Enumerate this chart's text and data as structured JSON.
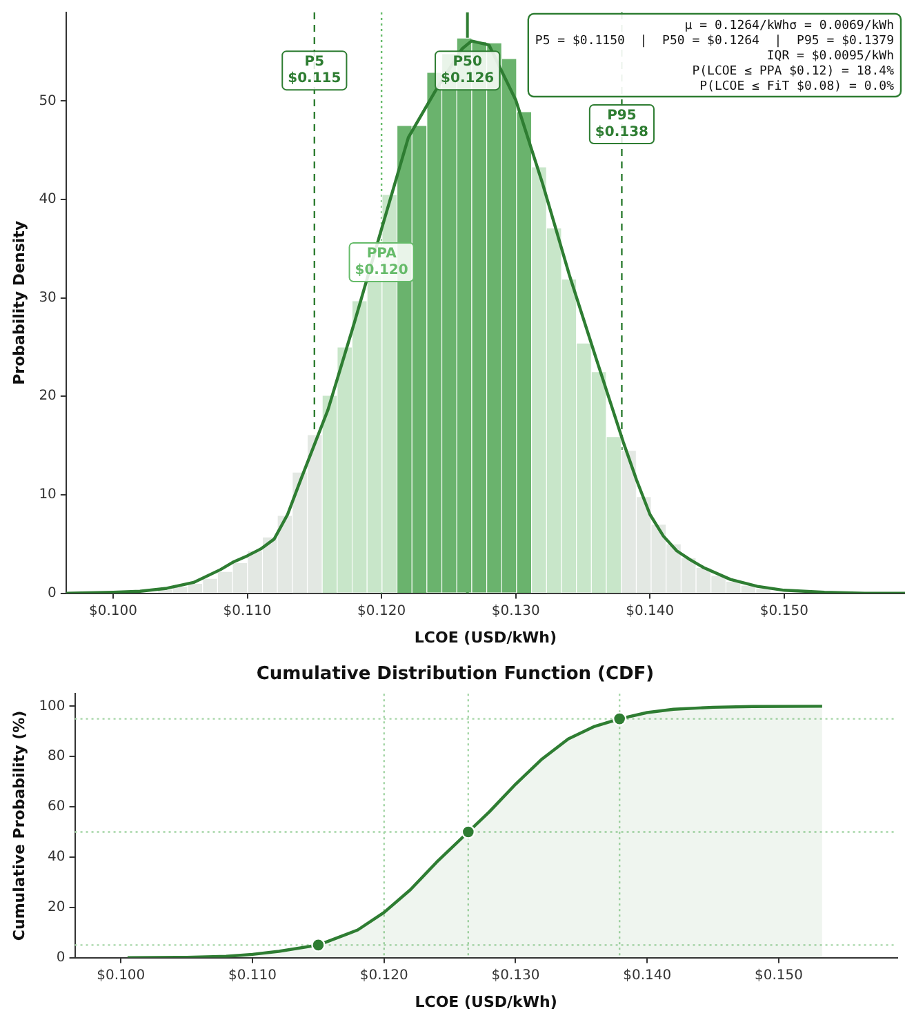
{
  "chart_data": [
    {
      "type": "histogram",
      "xlabel": "LCOE (USD/kWh)",
      "ylabel": "Probability Density",
      "bins": [
        0.1011,
        0.10221,
        0.10333,
        0.10444,
        0.10556,
        0.10667,
        0.10778,
        0.1089,
        0.11001,
        0.11113,
        0.11224,
        0.11335,
        0.11447,
        0.11558,
        0.1167,
        0.11781,
        0.11892,
        0.12004,
        0.12115,
        0.12227,
        0.12338,
        0.12449,
        0.12561,
        0.12672,
        0.12784,
        0.12895,
        0.13006,
        0.13118,
        0.13229,
        0.13341,
        0.13452,
        0.13563,
        0.13675,
        0.13786,
        0.13898,
        0.14009,
        0.1412,
        0.14232,
        0.14343,
        0.14455,
        0.14566,
        0.14677,
        0.14789,
        0.149,
        0.15012,
        0.15123,
        0.15234,
        0.15346
      ],
      "values": [
        null,
        null,
        0.4,
        0.7,
        1.0,
        1.5,
        2.2,
        3.1,
        4.3,
        5.7,
        7.9,
        12.3,
        16.1,
        20.1,
        25.0,
        29.7,
        32.3,
        40.5,
        47.5,
        47.5,
        52.9,
        54.8,
        56.4,
        56.0,
        55.9,
        54.3,
        48.9,
        43.3,
        37.1,
        31.9,
        25.4,
        22.5,
        15.9,
        14.5,
        9.8,
        7.0,
        5.0,
        3.6,
        2.6,
        1.8,
        1.2,
        0.8,
        0.5,
        null,
        null,
        null,
        null
      ],
      "colors": [
        "#e3e8e3",
        "#e3e8e3",
        "#e3e8e3",
        "#e3e8e3",
        "#e3e8e3",
        "#e3e8e3",
        "#e3e8e3",
        "#e3e8e3",
        "#e3e8e3",
        "#e3e8e3",
        "#e3e8e3",
        "#e3e8e3",
        "#e3e8e3",
        "#c8e6c9",
        "#c8e6c9",
        "#c8e6c9",
        "#c8e6c9",
        "#c8e6c9",
        "#6ab36d",
        "#6ab36d",
        "#6ab36d",
        "#6ab36d",
        "#6ab36d",
        "#6ab36d",
        "#6ab36d",
        "#6ab36d",
        "#6ab36d",
        "#c8e6c9",
        "#c8e6c9",
        "#c8e6c9",
        "#c8e6c9",
        "#c8e6c9",
        "#c8e6c9",
        "#e3e8e3",
        "#e3e8e3",
        "#e3e8e3",
        "#e3e8e3",
        "#e3e8e3",
        "#e3e8e3",
        "#e3e8e3",
        "#e3e8e3",
        "#e3e8e3",
        "#e3e8e3",
        "#e3e8e3",
        "#e3e8e3",
        "#e3e8e3",
        "#e3e8e3"
      ],
      "series": [
        {
          "type": "line",
          "color": "#2e7d32",
          "x": [
            0.0965,
            0.1,
            0.102,
            0.104,
            0.106,
            0.108,
            0.109,
            0.11,
            0.111,
            0.112,
            0.113,
            0.114,
            0.116,
            0.118,
            0.12,
            0.122,
            0.124,
            0.126,
            0.1267,
            0.128,
            0.13,
            0.132,
            0.134,
            0.136,
            0.138,
            0.139,
            0.14,
            0.141,
            0.142,
            0.143,
            0.144,
            0.146,
            0.148,
            0.15,
            0.153,
            0.156,
            0.159
          ],
          "values": [
            0,
            0.1,
            0.2,
            0.5,
            1.1,
            2.4,
            3.2,
            3.8,
            4.5,
            5.5,
            8.0,
            11.6,
            18.6,
            27.6,
            37.0,
            46.3,
            51.0,
            55.3,
            56.1,
            55.7,
            50.1,
            41.6,
            32.3,
            23.8,
            15.4,
            11.5,
            8.0,
            5.8,
            4.3,
            3.4,
            2.6,
            1.4,
            0.7,
            0.3,
            0.1,
            0,
            0
          ]
        }
      ],
      "xlim": [
        0.0965,
        0.159
      ],
      "ylim": [
        0,
        59
      ],
      "xticks": [
        {
          "value": 0.1,
          "label": "$0.100"
        },
        {
          "value": 0.11,
          "label": "$0.110"
        },
        {
          "value": 0.12,
          "label": "$0.120"
        },
        {
          "value": 0.13,
          "label": "$0.130"
        },
        {
          "value": 0.14,
          "label": "$0.140"
        },
        {
          "value": 0.15,
          "label": "$0.150"
        }
      ],
      "yticks": [
        0,
        10,
        20,
        30,
        40,
        50
      ],
      "ref_lines": [
        {
          "axis": "x",
          "value": 0.115,
          "label": "P5\n$0.115",
          "color": "#2e7d32",
          "line_style": "dashed"
        },
        {
          "axis": "x",
          "value": 0.12,
          "label": "PPA\n$0.120",
          "color": "#66bb6a",
          "line_style": "dotted"
        },
        {
          "axis": "x",
          "value": 0.1264,
          "label": "P50\n$0.126",
          "color": "#2e7d32",
          "line_style": "solid"
        },
        {
          "axis": "x",
          "value": 0.1379,
          "label": "P95\n$0.138",
          "color": "#2e7d32",
          "line_style": "dashed"
        }
      ],
      "annotations": [
        "μ = 0.1264/kWhσ = 0.0069/kWh\nP5 = $0.1150  |  P50 = $0.1264  |  P95 = $0.1379\nIQR = $0.0095/kWh\nP(LCOE ≤ PPA $0.12) = 18.4%\nP(LCOE ≤ FiT $0.08) = 0.0%"
      ]
    },
    {
      "type": "area",
      "title": "Cumulative Distribution Function (CDF)",
      "xlabel": "LCOE (USD/kWh)",
      "ylabel": "Cumulative Probability (%)",
      "series": [
        {
          "color": "#2e7d32",
          "x": [
            0.1005,
            0.105,
            0.108,
            0.11,
            0.112,
            0.115,
            0.118,
            0.12,
            0.122,
            0.124,
            0.1264,
            0.128,
            0.13,
            0.132,
            0.134,
            0.136,
            0.1379,
            0.14,
            0.142,
            0.145,
            0.148,
            0.1533
          ],
          "values": [
            0,
            0.1,
            0.5,
            1.3,
            2.5,
            5,
            11,
            18,
            27,
            38,
            50,
            58,
            69,
            79,
            87,
            92,
            95,
            97.5,
            98.8,
            99.6,
            99.9,
            100
          ]
        },
        {
          "type": "scatter",
          "color": "#2e7d32",
          "x": [
            0.115,
            0.1264,
            0.1379
          ],
          "values": [
            5,
            50,
            95
          ]
        }
      ],
      "xlim": [
        0.0965,
        0.159
      ],
      "ylim": [
        0,
        105
      ],
      "xticks": [
        {
          "value": 0.1,
          "label": "$0.100"
        },
        {
          "value": 0.11,
          "label": "$0.110"
        },
        {
          "value": 0.12,
          "label": "$0.120"
        },
        {
          "value": 0.13,
          "label": "$0.130"
        },
        {
          "value": 0.14,
          "label": "$0.140"
        },
        {
          "value": 0.15,
          "label": "$0.150"
        }
      ],
      "yticks": [
        0,
        20,
        40,
        60,
        80,
        100
      ],
      "ref_lines": [
        {
          "axis": "y",
          "value": 5,
          "color": "#a5d6a7",
          "line_style": "dotted"
        },
        {
          "axis": "y",
          "value": 50,
          "color": "#a5d6a7",
          "line_style": "dotted"
        },
        {
          "axis": "y",
          "value": 95,
          "color": "#a5d6a7",
          "line_style": "dotted"
        },
        {
          "axis": "x",
          "value": 0.12,
          "color": "#a5d6a7",
          "line_style": "dotted"
        },
        {
          "axis": "x",
          "value": 0.1264,
          "color": "#a5d6a7",
          "line_style": "dotted"
        },
        {
          "axis": "x",
          "value": 0.1379,
          "color": "#a5d6a7",
          "line_style": "dotted"
        }
      ]
    }
  ]
}
